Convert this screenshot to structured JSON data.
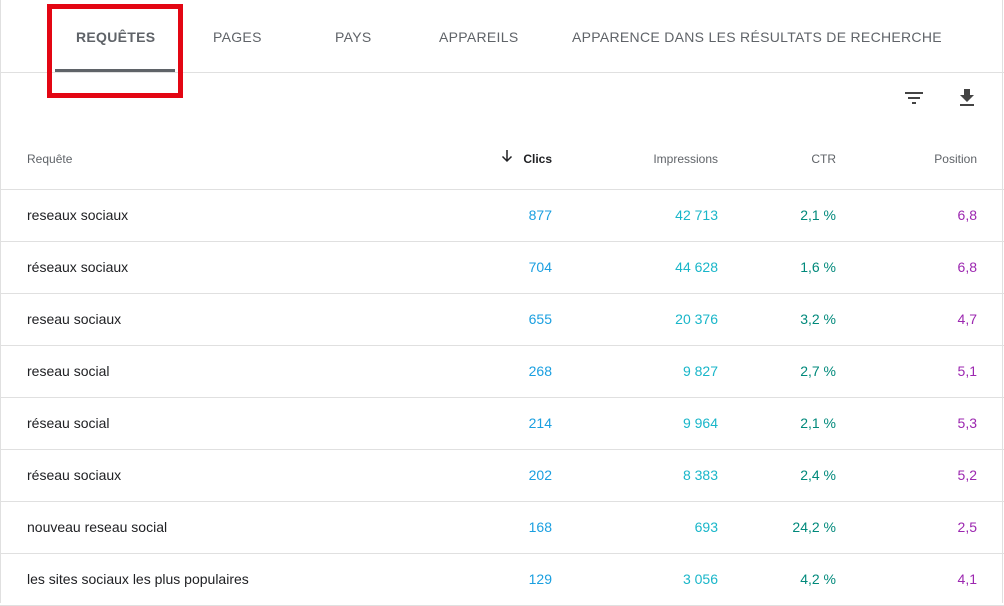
{
  "tabs": [
    {
      "label": "REQUÊTES",
      "active": true
    },
    {
      "label": "PAGES",
      "active": false
    },
    {
      "label": "PAYS",
      "active": false
    },
    {
      "label": "APPAREILS",
      "active": false
    },
    {
      "label": "APPARENCE DANS LES RÉSULTATS DE RECHERCHE",
      "active": false
    }
  ],
  "toolbar": {
    "filter_icon": "filter-icon",
    "download_icon": "download-icon"
  },
  "table": {
    "headers": {
      "query": "Requête",
      "clicks": "Clics",
      "impressions": "Impressions",
      "ctr": "CTR",
      "position": "Position"
    },
    "sorted_by": "clicks",
    "sort_direction": "descending",
    "rows": [
      {
        "query": "reseaux sociaux",
        "clicks": "877",
        "impressions": "42 713",
        "ctr": "2,1 %",
        "position": "6,8"
      },
      {
        "query": "réseaux sociaux",
        "clicks": "704",
        "impressions": "44 628",
        "ctr": "1,6 %",
        "position": "6,8"
      },
      {
        "query": "reseau sociaux",
        "clicks": "655",
        "impressions": "20 376",
        "ctr": "3,2 %",
        "position": "4,7"
      },
      {
        "query": "reseau social",
        "clicks": "268",
        "impressions": "9 827",
        "ctr": "2,7 %",
        "position": "5,1"
      },
      {
        "query": "réseau social",
        "clicks": "214",
        "impressions": "9 964",
        "ctr": "2,1 %",
        "position": "5,3"
      },
      {
        "query": "réseau sociaux",
        "clicks": "202",
        "impressions": "8 383",
        "ctr": "2,4 %",
        "position": "5,2"
      },
      {
        "query": "nouveau reseau social",
        "clicks": "168",
        "impressions": "693",
        "ctr": "24,2 %",
        "position": "2,5"
      },
      {
        "query": "les sites sociaux les plus populaires",
        "clicks": "129",
        "impressions": "3 056",
        "ctr": "4,2 %",
        "position": "4,1"
      }
    ]
  },
  "colors": {
    "clicks": "#1a9fe0",
    "impressions": "#19b6c9",
    "ctr": "#00897b",
    "position": "#9c27b0",
    "highlight": "#e30613"
  }
}
